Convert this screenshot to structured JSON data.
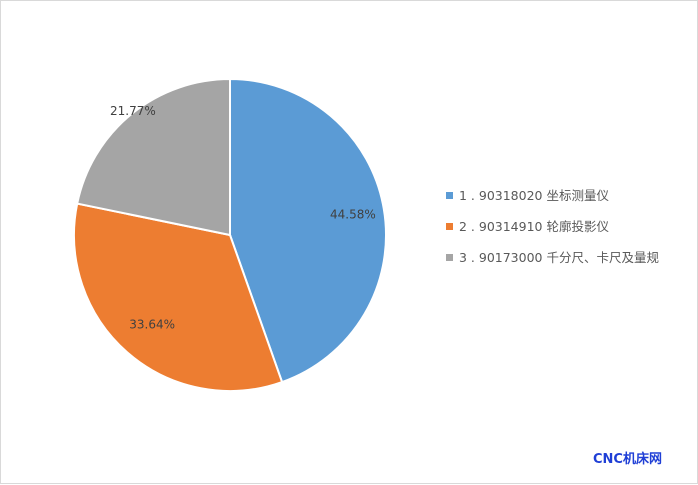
{
  "chart_data": {
    "type": "pie",
    "slices": [
      {
        "label": "1 . 90318020 坐标测量仪",
        "value": 44.58,
        "value_label": "44.58%",
        "color": "#5b9bd5"
      },
      {
        "label": "2 . 90314910 轮廓投影仪",
        "value": 33.64,
        "value_label": "33.64%",
        "color": "#ed7d31"
      },
      {
        "label": "3 . 90173000 千分尺、卡尺及量规",
        "value": 21.77,
        "value_label": "21.77%",
        "color": "#a5a5a5"
      }
    ],
    "legend_position": "right",
    "start_angle": "top, clockwise"
  },
  "watermark": {
    "text": "CNC机床网"
  }
}
